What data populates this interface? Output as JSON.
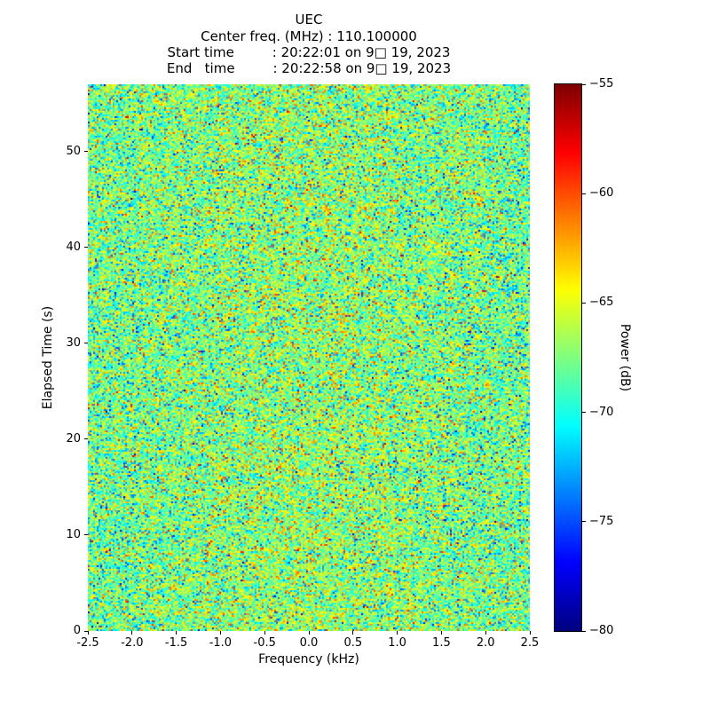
{
  "header": {
    "title": "UEC",
    "center_freq": "Center freq. (MHz) : 110.100000",
    "start_time": "Start time         : 20:22:01 on 9□ 19, 2023",
    "end_time": "End   time         : 20:22:58 on 9□ 19, 2023"
  },
  "chart_data": {
    "type": "heatmap",
    "title": "UEC",
    "xlabel": "Frequency (kHz)",
    "ylabel": "Elapsed Time (s)",
    "colorbar_label": "Power (dB)",
    "xlim": [
      -2.5,
      2.5
    ],
    "ylim": [
      0,
      57
    ],
    "x_tick_values": [
      -2.5,
      -2.0,
      -1.5,
      -1.0,
      -0.5,
      0.0,
      0.5,
      1.0,
      1.5,
      2.0,
      2.5
    ],
    "x_tick_labels": [
      "-2.5",
      "-2.0",
      "-1.5",
      "-1.0",
      "-0.5",
      "0.0",
      "0.5",
      "1.0",
      "1.5",
      "2.0",
      "2.5"
    ],
    "y_tick_values": [
      0,
      10,
      20,
      30,
      40,
      50
    ],
    "y_tick_labels": [
      "0",
      "10",
      "20",
      "30",
      "40",
      "50"
    ],
    "colorbar_tick_values": [
      -55,
      -60,
      -65,
      -70,
      -75,
      -80
    ],
    "colorbar_tick_labels": [
      "−55",
      "−60",
      "−65",
      "−70",
      "−75",
      "−80"
    ],
    "clim": [
      -80,
      -55
    ],
    "colormap": "jet",
    "colormap_stops": [
      "#00007f",
      "#0000ff",
      "#00ffff",
      "#7fff7f",
      "#ffff00",
      "#ff0000",
      "#7f0000"
    ],
    "legend": "none",
    "grid": false,
    "data_description": "Waterfall spectrogram of receiver noise; no discrete signal visible. Per-bin power is random noise, approximately Gaussian with mean ≈ −68 dB and σ ≈ 3.2 dB, slightly warmer (≈ +1 dB) near the center frequency.",
    "noise": {
      "mean_db": -68,
      "std_db": 3.2,
      "center_boost_db": 1.0,
      "seed": 42,
      "cols": 249,
      "rows": 308
    }
  }
}
